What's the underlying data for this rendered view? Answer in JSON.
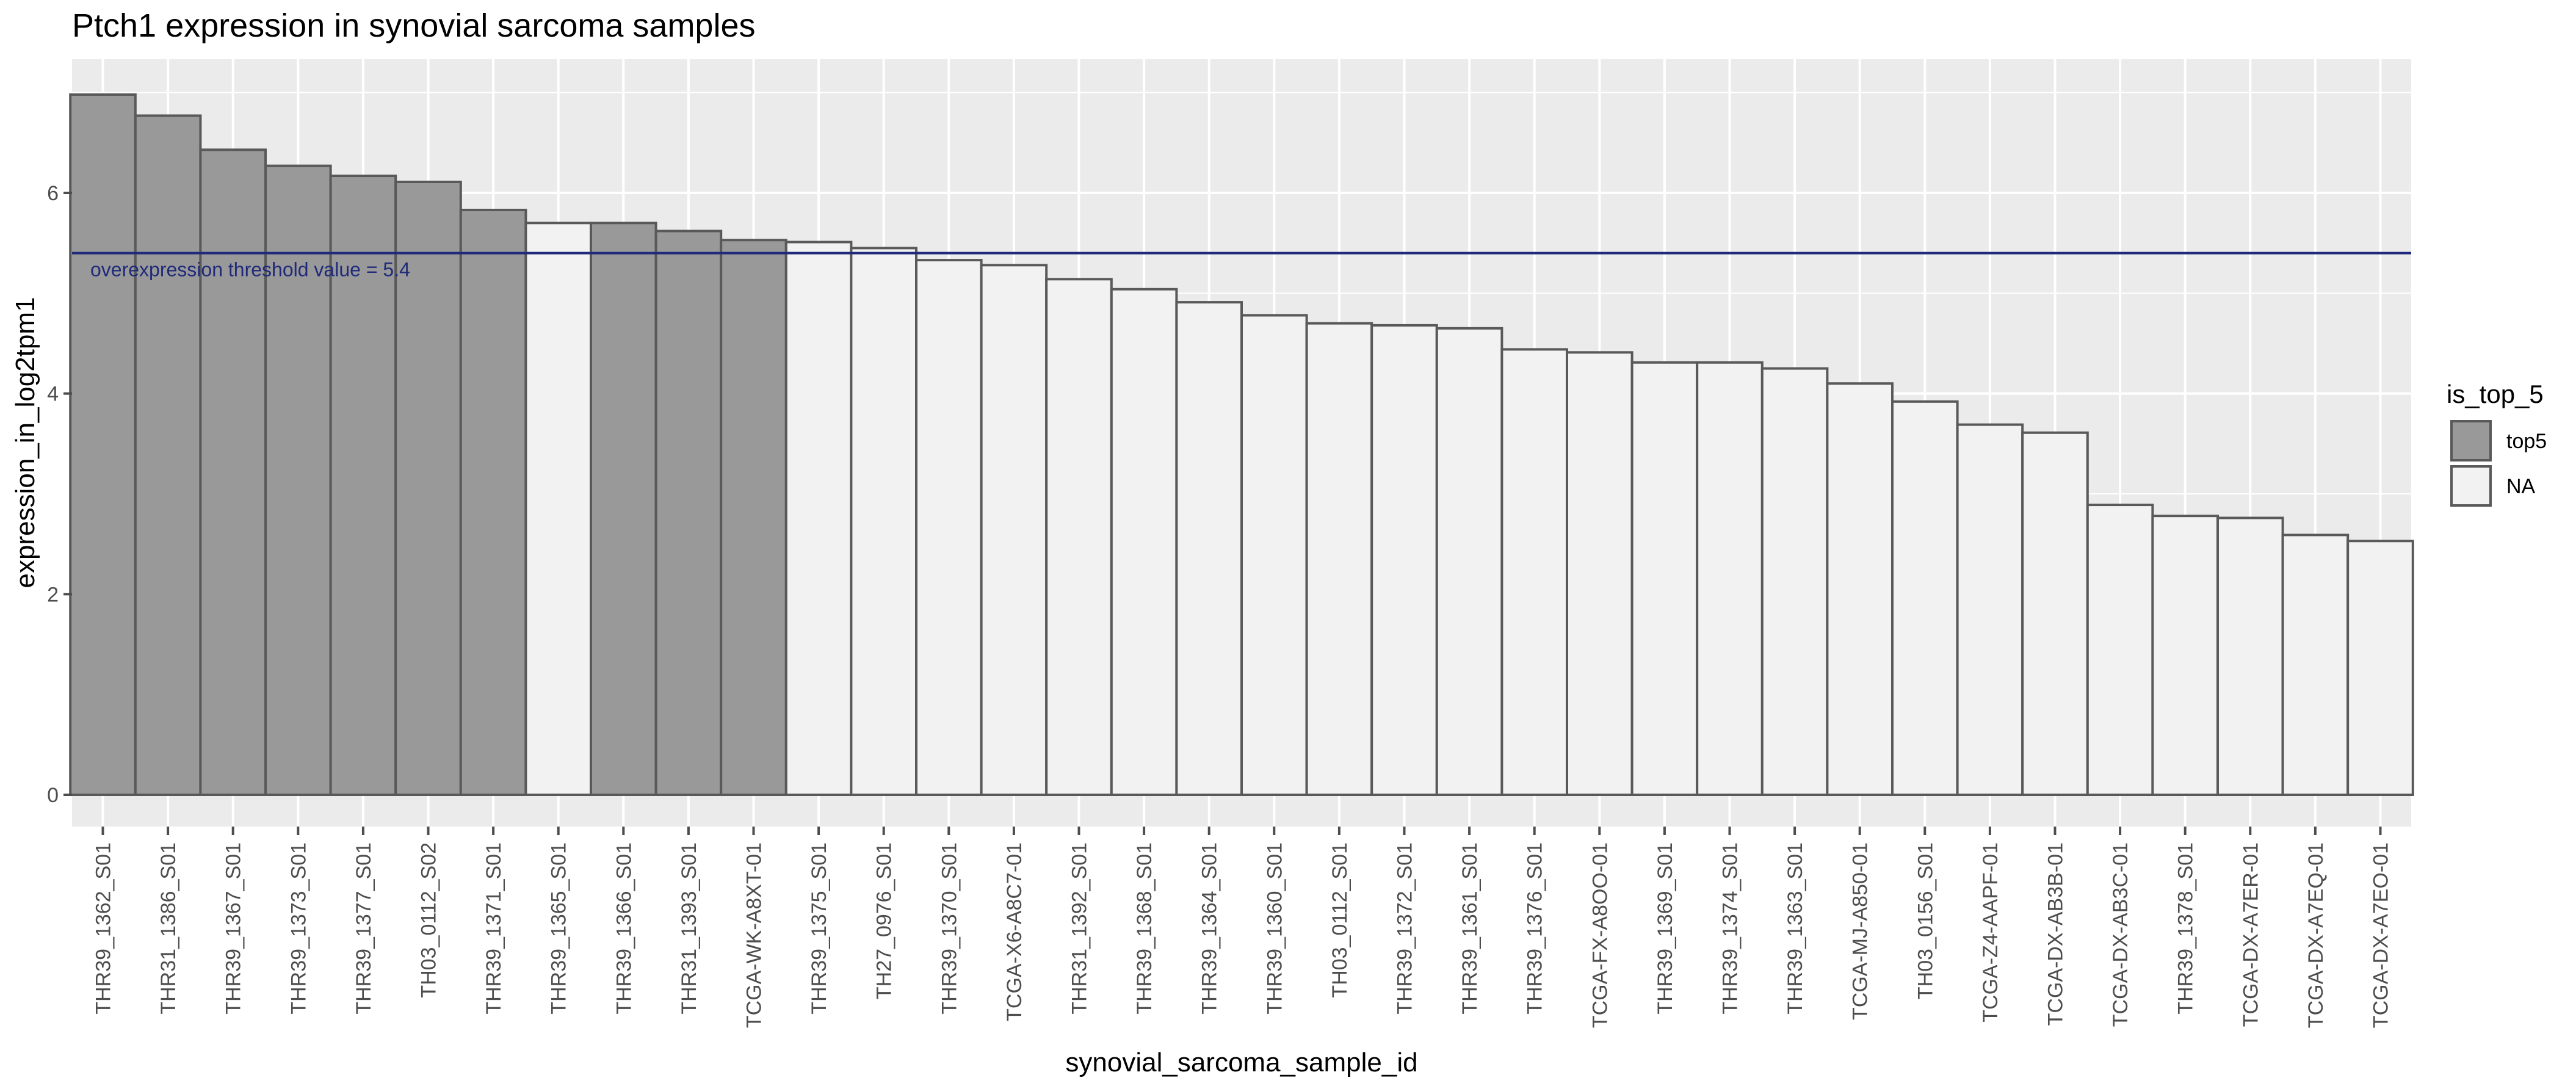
{
  "chart_data": {
    "type": "bar",
    "title": "Ptch1 expression in synovial sarcoma samples",
    "xlabel": "synovial_sarcoma_sample_id",
    "ylabel": "expression_in_log2tpm1",
    "ylim": [
      0,
      7.2
    ],
    "yticks": [
      0,
      2,
      4,
      6
    ],
    "grid": true,
    "legend": {
      "title": "is_top_5",
      "placement": "right",
      "entries": [
        {
          "label": "top5",
          "color": "#999999"
        },
        {
          "label": "NA",
          "color": "#f2f2f2"
        }
      ]
    },
    "annotation": {
      "text": "overexpression threshold  value = 5.4",
      "y": 5.4,
      "color": "#1f2a7a"
    },
    "colors": {
      "panel": "#ebebeb",
      "grid_major": "#ffffff",
      "bar_outline": "#595959",
      "tick": "#4d4d4d"
    },
    "categories": [
      "THR39_1362_S01",
      "THR31_1386_S01",
      "THR39_1367_S01",
      "THR39_1373_S01",
      "THR39_1377_S01",
      "TH03_0112_S02",
      "THR39_1371_S01",
      "THR39_1365_S01",
      "THR39_1366_S01",
      "THR31_1393_S01",
      "TCGA-WK-A8XT-01",
      "THR39_1375_S01",
      "TH27_0976_S01",
      "THR39_1370_S01",
      "TCGA-X6-A8C7-01",
      "THR31_1392_S01",
      "THR39_1368_S01",
      "THR39_1364_S01",
      "THR39_1360_S01",
      "TH03_0112_S01",
      "THR39_1372_S01",
      "THR39_1361_S01",
      "THR39_1376_S01",
      "TCGA-FX-A8OO-01",
      "THR39_1369_S01",
      "THR39_1374_S01",
      "THR39_1363_S01",
      "TCGA-MJ-A850-01",
      "TH03_0156_S01",
      "TCGA-Z4-AAPF-01",
      "TCGA-DX-AB3B-01",
      "TCGA-DX-AB3C-01",
      "THR39_1378_S01",
      "TCGA-DX-A7ER-01",
      "TCGA-DX-A7EQ-01",
      "TCGA-DX-A7EO-01"
    ],
    "values": [
      6.98,
      6.77,
      6.43,
      6.27,
      6.17,
      6.11,
      5.83,
      5.7,
      5.7,
      5.62,
      5.53,
      5.51,
      5.45,
      5.33,
      5.28,
      5.14,
      5.04,
      4.91,
      4.78,
      4.7,
      4.68,
      4.65,
      4.44,
      4.41,
      4.31,
      4.31,
      4.25,
      4.1,
      3.92,
      3.69,
      3.61,
      2.89,
      2.78,
      2.76,
      2.59,
      2.53
    ],
    "groups": [
      "top5",
      "top5",
      "top5",
      "top5",
      "top5",
      "top5",
      "top5",
      "NA",
      "top5",
      "top5",
      "top5",
      "NA",
      "NA",
      "NA",
      "NA",
      "NA",
      "NA",
      "NA",
      "NA",
      "NA",
      "NA",
      "NA",
      "NA",
      "NA",
      "NA",
      "NA",
      "NA",
      "NA",
      "NA",
      "NA",
      "NA",
      "NA",
      "NA",
      "NA",
      "NA",
      "NA"
    ]
  }
}
